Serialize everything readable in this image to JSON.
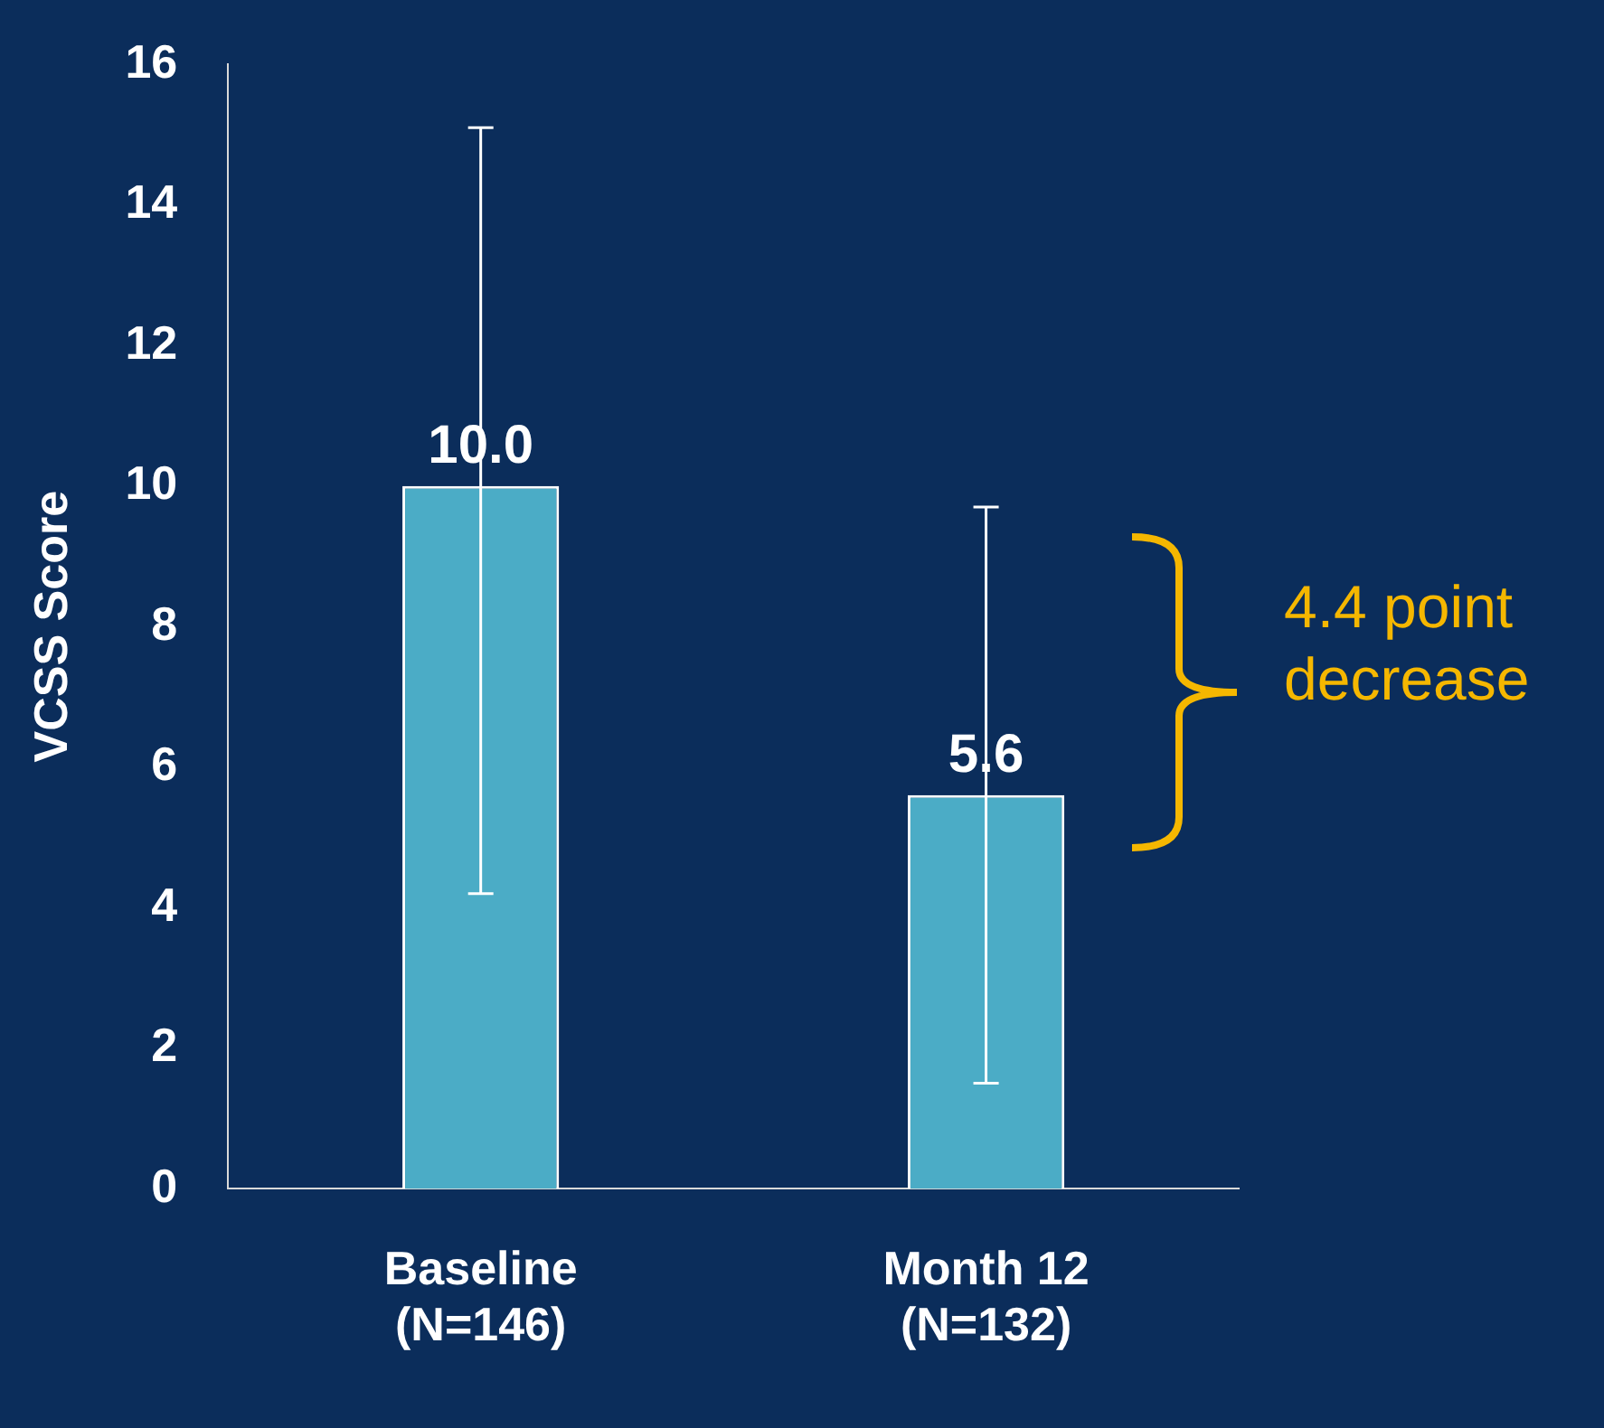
{
  "chart_data": {
    "type": "bar",
    "ylabel": "VCSS Score",
    "categories": [
      "Baseline\n(N=146)",
      "Month 12\n(N=132)"
    ],
    "values": [
      10.0,
      5.6
    ],
    "errors": [
      [
        4.2,
        15.1
      ],
      [
        1.5,
        9.7
      ]
    ],
    "value_labels": [
      "10.0",
      "5.6"
    ],
    "color": "#4bacc6",
    "ylim": [
      0,
      16
    ],
    "yticks": [
      0,
      2,
      4,
      6,
      8,
      10,
      12,
      14,
      16
    ],
    "grid": false,
    "legend": false,
    "annotations": [
      "4.4 point decrease"
    ]
  }
}
